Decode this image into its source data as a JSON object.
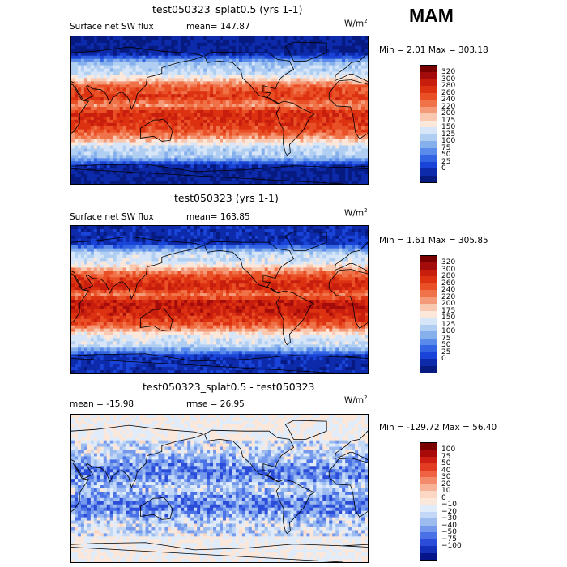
{
  "season": "MAM",
  "unit_base": "W/m",
  "unit_exp": "2",
  "panels": [
    {
      "title": "test050323_splat0.5 (yrs 1-1)",
      "left_label": "Surface net SW flux",
      "center_label": "mean= 147.87",
      "min_label": "Min =   2.01 Max = 303.18",
      "scale": [
        "320",
        "300",
        "280",
        "260",
        "240",
        "220",
        "200",
        "175",
        "150",
        "125",
        "100",
        "75",
        "50",
        "25",
        "0"
      ],
      "map_type": "flux"
    },
    {
      "title": "test050323 (yrs 1-1)",
      "left_label": "Surface net SW flux",
      "center_label": "mean= 163.85",
      "min_label": "Min =   1.61 Max = 305.85",
      "scale": [
        "320",
        "300",
        "280",
        "260",
        "240",
        "220",
        "200",
        "175",
        "150",
        "125",
        "100",
        "75",
        "50",
        "25",
        "0"
      ],
      "map_type": "flux"
    },
    {
      "title": "test050323_splat0.5 - test050323",
      "left_label": "mean = -15.98",
      "center_label": "rmse =  26.95",
      "min_label": "Min = -129.72 Max =  56.40",
      "scale": [
        "100",
        "75",
        "50",
        "40",
        "30",
        "20",
        "10",
        "0",
        "−10",
        "−20",
        "−30",
        "−40",
        "−50",
        "−75",
        "−100"
      ],
      "map_type": "diff"
    }
  ],
  "colors": {
    "flux_palette": [
      "#7a0000",
      "#a40c0c",
      "#c81e0e",
      "#dc3212",
      "#ea5026",
      "#f07248",
      "#f49a78",
      "#f8c8b0",
      "#fce8da",
      "#d6e6f8",
      "#b0cef2",
      "#86b0ec",
      "#5a8aea",
      "#3264e4",
      "#1a44d8",
      "#0c2aaa",
      "#061a80"
    ],
    "diff_palette": [
      "#7a0000",
      "#a80a0a",
      "#cc1e12",
      "#e23c22",
      "#ef6244",
      "#f48a6c",
      "#f8b298",
      "#fcd8c4",
      "#fce8da",
      "#e0ecfa",
      "#c2d8f6",
      "#9cbcf0",
      "#7498ec",
      "#4a72e6",
      "#2a4cd8",
      "#1430b8",
      "#06148a"
    ],
    "land_line": "#000000"
  }
}
